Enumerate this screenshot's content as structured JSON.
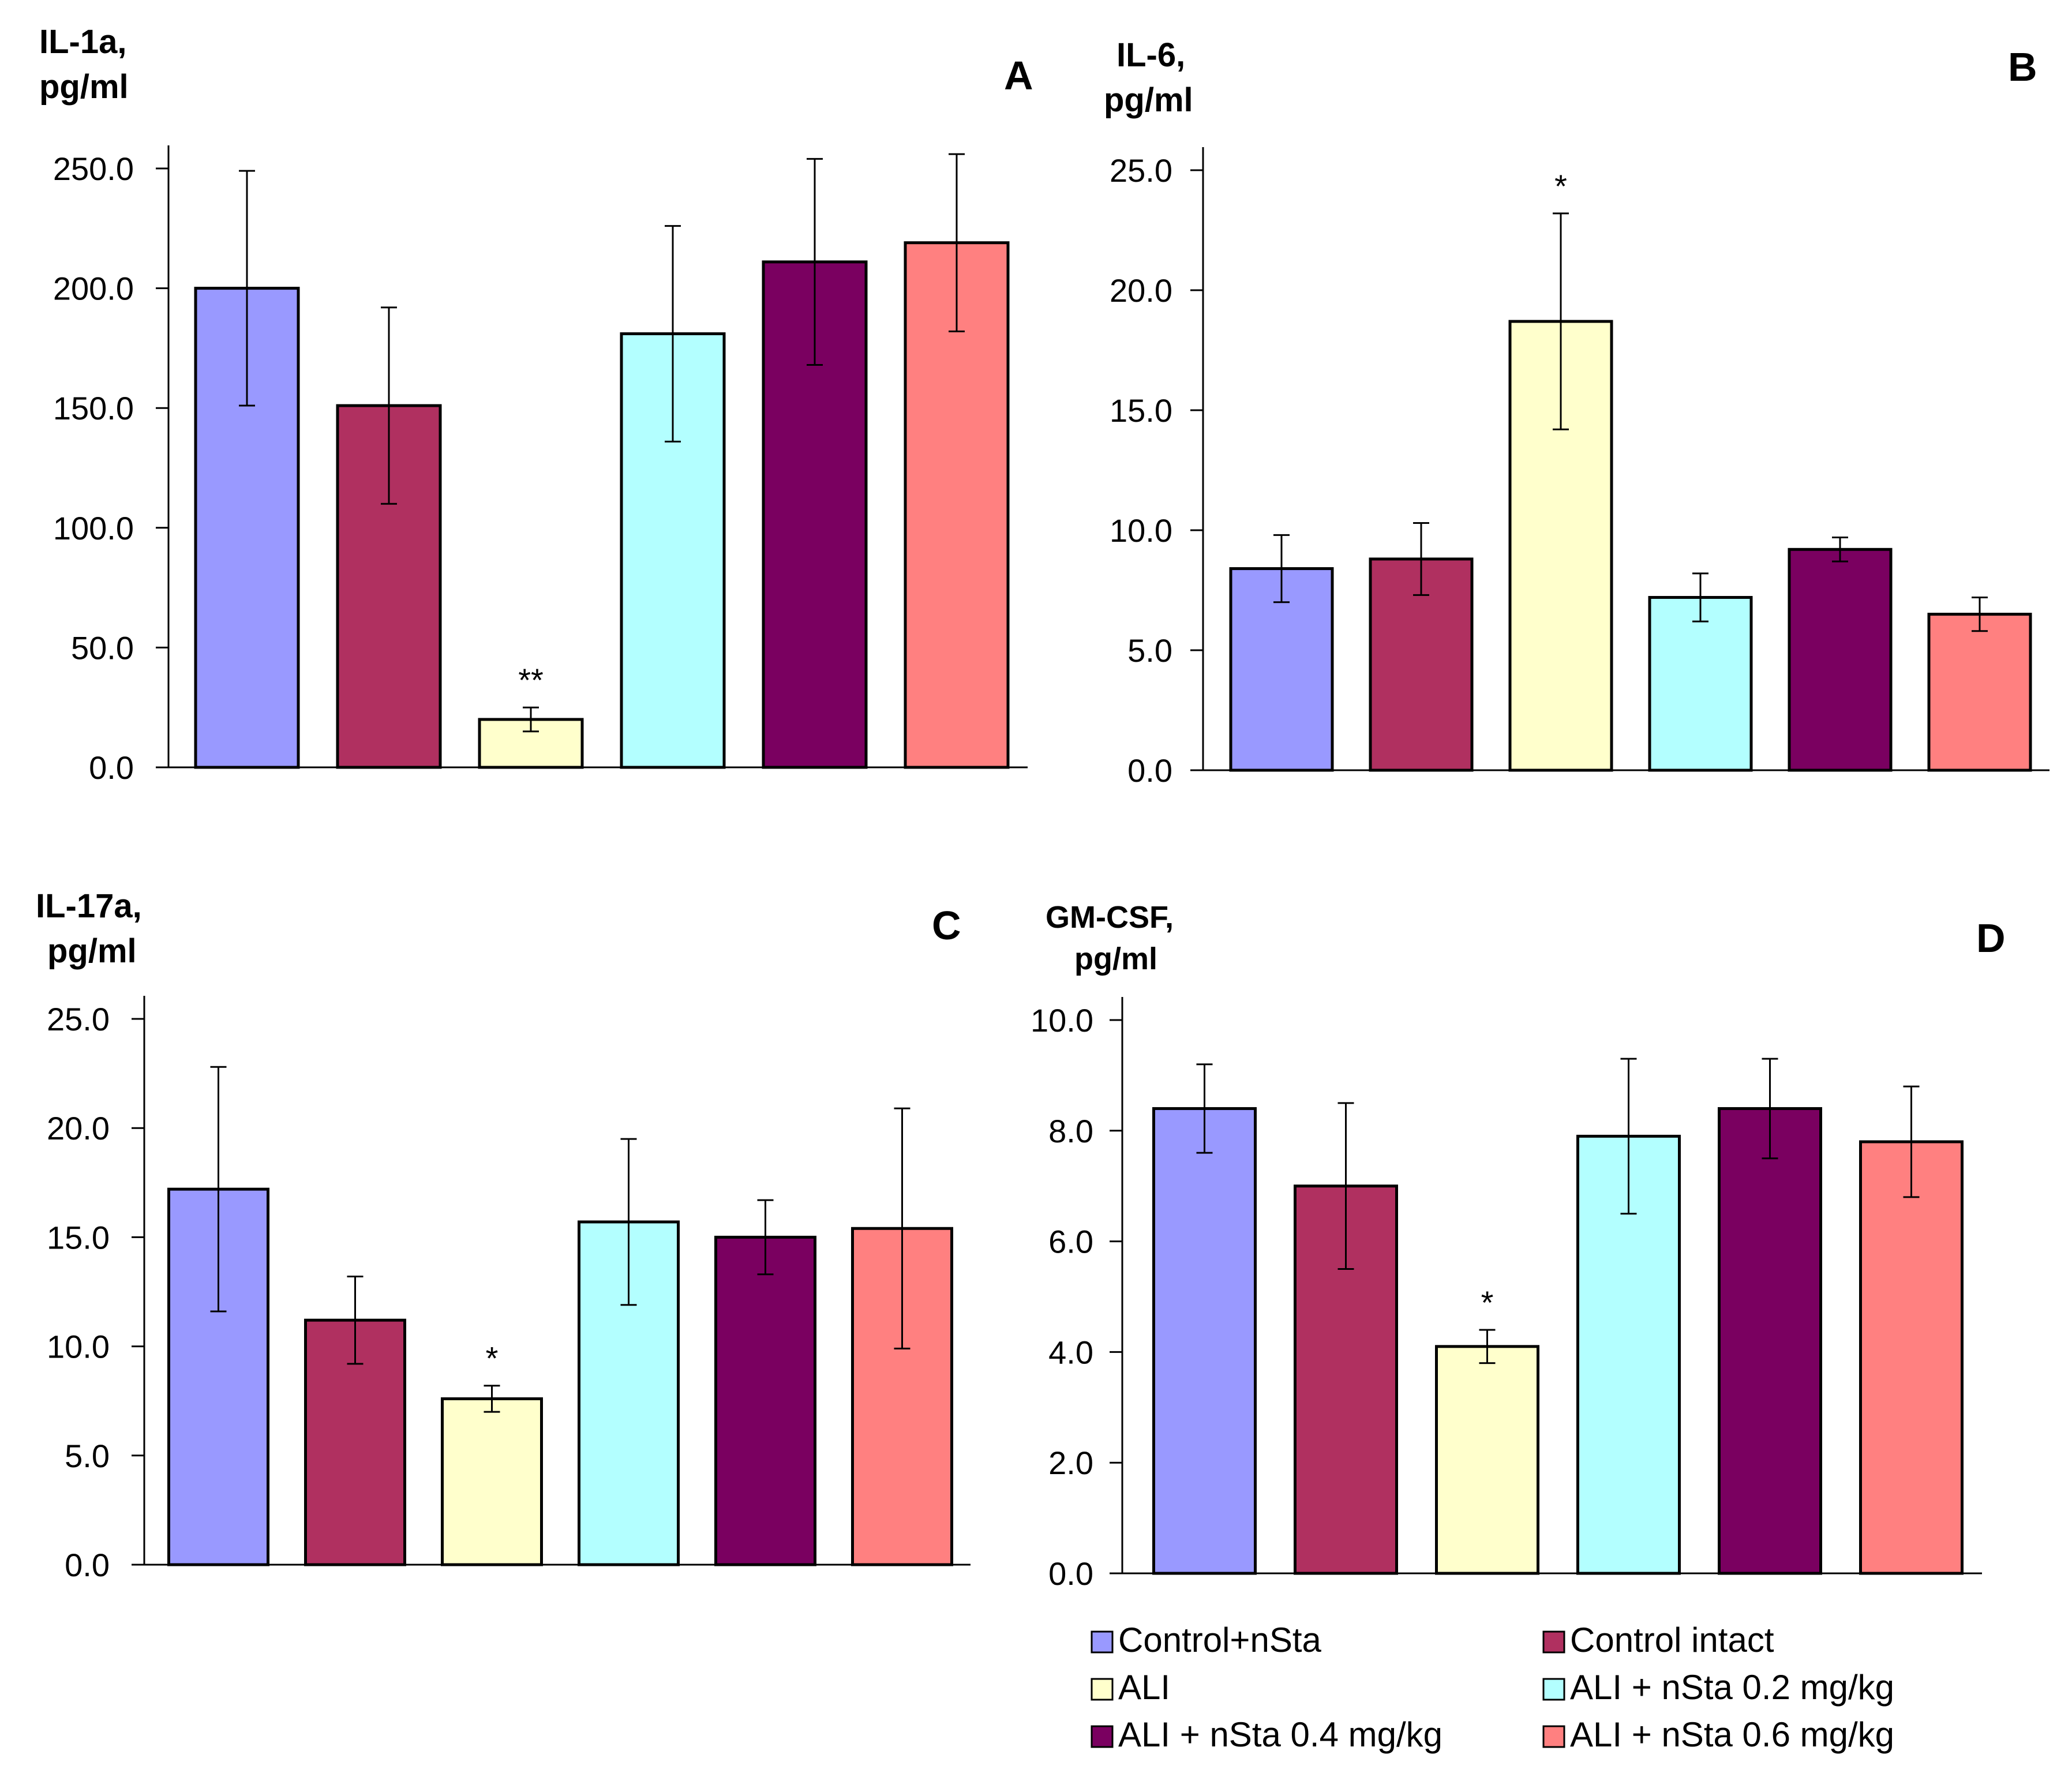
{
  "figure": {
    "legend": [
      {
        "label": "Control+nSta",
        "color": "#9999FF"
      },
      {
        "label": "Control intact",
        "color": "#B03060"
      },
      {
        "label": "ALI",
        "color": "#FFFFCC"
      },
      {
        "label": "ALI + nSta 0.2 mg/kg",
        "color": "#B3FFFF"
      },
      {
        "label": "ALI + nSta 0.4 mg/kg",
        "color": "#7A0060"
      },
      {
        "label": "ALI + nSta 0.6 mg/kg",
        "color": "#FF8080"
      }
    ]
  },
  "chart_data": [
    {
      "type": "bar",
      "panel": "A",
      "ylabel_line1": "IL-1a,",
      "ylabel_line2": "pg/ml",
      "categories": [
        "Control+nSta",
        "Control intact",
        "ALI",
        "ALI + nSta 0.2 mg/kg",
        "ALI + nSta 0.4 mg/kg",
        "ALI + nSta 0.6 mg/kg"
      ],
      "values": [
        200.0,
        151.0,
        20.0,
        181.0,
        211.0,
        219.0
      ],
      "errors": [
        49.0,
        41.0,
        5.0,
        45.0,
        43.0,
        37.0
      ],
      "annotations": [
        "",
        "",
        "**",
        "",
        "",
        ""
      ],
      "ylim": [
        0,
        250
      ],
      "yticks": [
        0,
        50,
        100,
        150,
        200,
        250
      ],
      "tick_labels": [
        "0.0",
        "50.0",
        "100.0",
        "150.0",
        "200.0",
        "250.0"
      ]
    },
    {
      "type": "bar",
      "panel": "B",
      "ylabel_line1": "IL-6,",
      "ylabel_line2": "pg/ml",
      "categories": [
        "Control+nSta",
        "Control intact",
        "ALI",
        "ALI + nSta 0.2 mg/kg",
        "ALI + nSta 0.4 mg/kg",
        "ALI + nSta 0.6 mg/kg"
      ],
      "values": [
        8.4,
        8.8,
        18.7,
        7.2,
        9.2,
        6.5
      ],
      "errors": [
        1.4,
        1.5,
        4.5,
        1.0,
        0.5,
        0.7
      ],
      "annotations": [
        "",
        "",
        "*",
        "",
        "",
        ""
      ],
      "ylim": [
        0,
        25
      ],
      "yticks": [
        0,
        5,
        10,
        15,
        20,
        25
      ],
      "tick_labels": [
        "0.0",
        "5.0",
        "10.0",
        "15.0",
        "20.0",
        "25.0"
      ]
    },
    {
      "type": "bar",
      "panel": "C",
      "ylabel_line1": "IL-17a,",
      "ylabel_line2": "pg/ml",
      "categories": [
        "Control+nSta",
        "Control intact",
        "ALI",
        "ALI + nSta 0.2 mg/kg",
        "ALI + nSta 0.4 mg/kg",
        "ALI + nSta 0.6 mg/kg"
      ],
      "values": [
        17.2,
        11.2,
        7.6,
        15.7,
        15.0,
        15.4
      ],
      "errors": [
        5.6,
        2.0,
        0.6,
        3.8,
        1.7,
        5.5
      ],
      "annotations": [
        "",
        "",
        "*",
        "",
        "",
        ""
      ],
      "ylim": [
        0,
        25
      ],
      "yticks": [
        0,
        5,
        10,
        15,
        20,
        25
      ],
      "tick_labels": [
        "0.0",
        "5.0",
        "10.0",
        "15.0",
        "20.0",
        "25.0"
      ]
    },
    {
      "type": "bar",
      "panel": "D",
      "ylabel_line1": "GM-CSF,",
      "ylabel_line2": "pg/ml",
      "categories": [
        "Control+nSta",
        "Control intact",
        "ALI",
        "ALI + nSta 0.2 mg/kg",
        "ALI + nSta 0.4 mg/kg",
        "ALI + nSta 0.6 mg/kg"
      ],
      "values": [
        8.4,
        7.0,
        4.1,
        7.9,
        8.4,
        7.8
      ],
      "errors": [
        0.8,
        1.5,
        0.3,
        1.4,
        0.9,
        1.0
      ],
      "annotations": [
        "",
        "",
        "*",
        "",
        "",
        ""
      ],
      "ylim": [
        0,
        10
      ],
      "yticks": [
        0,
        2,
        4,
        6,
        8,
        10
      ],
      "tick_labels": [
        "0.0",
        "2.0",
        "4.0",
        "6.0",
        "8.0",
        "10.0"
      ]
    }
  ]
}
